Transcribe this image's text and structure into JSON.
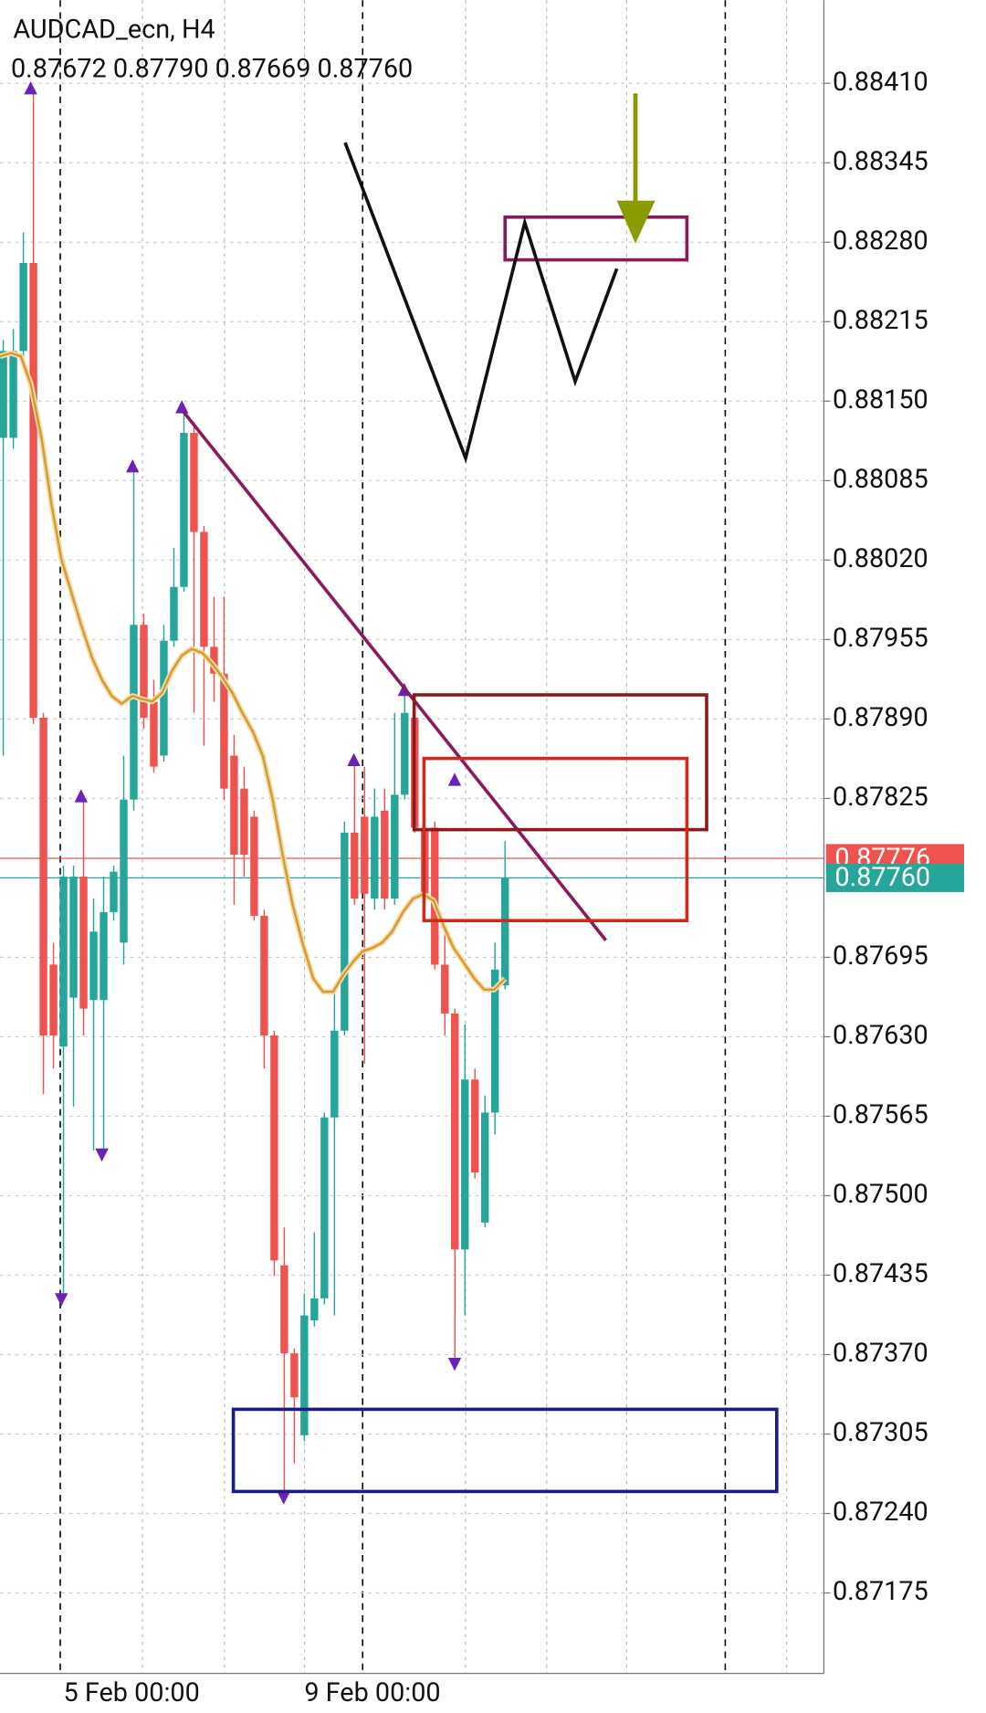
{
  "chart_data": {
    "type": "candlestick",
    "title": "AUDCAD_ecn, H4",
    "ohlc_label": "0.87672 0.87790 0.87669 0.87760",
    "categories": [
      null,
      null,
      null,
      null,
      null,
      null,
      "5 Feb 00:00",
      null,
      null,
      null,
      null,
      null,
      null,
      null,
      null,
      null,
      null,
      null,
      null,
      null,
      null,
      null,
      null,
      null,
      null,
      null,
      null,
      null,
      null,
      null,
      "9 Feb 00:00",
      null,
      null,
      null,
      null,
      null,
      null,
      null,
      null,
      null,
      null,
      null,
      null,
      null,
      null,
      null,
      null,
      null,
      null,
      null,
      null
    ],
    "open": [
      0.8812,
      0.8812,
      0.88191,
      0.88263,
      0.87891,
      0.87689,
      0.87622,
      0.87662,
      0.87761,
      0.8766,
      0.8766,
      0.87732,
      0.87707,
      0.87824,
      0.87967,
      0.87904,
      0.8786,
      0.87954,
      0.87998,
      0.88124,
      0.88043,
      0.87949,
      0.87927,
      0.8786,
      0.87833,
      0.8781,
      0.87729,
      0.87631,
      0.87443,
      0.87371,
      0.87304,
      0.87398,
      0.87416,
      0.87564,
      0.87635,
      0.87797,
      0.8781,
      0.87743,
      0.87815,
      0.87743,
      0.87828,
      0.87891,
      0.87801,
      0.87801,
      0.87689,
      0.87649,
      0.87456,
      0.87595,
      0.87478,
      0.87568,
      0.87672
    ],
    "high": [
      0.882,
      0.88209,
      0.88288,
      0.88406,
      0.87895,
      0.87707,
      0.8777,
      0.8777,
      0.87824,
      0.87743,
      0.87761,
      0.8777,
      0.8786,
      0.88097,
      0.87976,
      0.87922,
      0.87967,
      0.8803,
      0.88146,
      0.88133,
      0.88048,
      0.8799,
      0.8799,
      0.87877,
      0.87851,
      0.87815,
      0.87734,
      0.87635,
      0.87474,
      0.87375,
      0.8742,
      0.8747,
      0.87568,
      0.87667,
      0.87806,
      0.87855,
      0.87851,
      0.87833,
      0.87833,
      0.87895,
      0.87913,
      0.87904,
      0.87806,
      0.87806,
      0.87721,
      0.87653,
      0.8764,
      0.87604,
      0.87582,
      0.87707,
      0.8779
    ],
    "low": [
      0.8786,
      0.88111,
      0.88182,
      0.87886,
      0.87583,
      0.87604,
      0.87416,
      0.87573,
      0.87631,
      0.87537,
      0.87537,
      0.87725,
      0.87689,
      0.87815,
      0.87882,
      0.87846,
      0.87855,
      0.87949,
      0.87994,
      0.87895,
      0.87868,
      0.87904,
      0.87824,
      0.87738,
      0.87761,
      0.87725,
      0.87604,
      0.87434,
      0.87254,
      0.87281,
      0.87299,
      0.87393,
      0.87411,
      0.87402,
      0.87631,
      0.87738,
      0.87608,
      0.87734,
      0.87734,
      0.87738,
      0.87824,
      0.87797,
      0.87738,
      0.87685,
      0.87631,
      0.87366,
      0.87402,
      0.87514,
      0.87474,
      0.8755,
      0.87669
    ],
    "close": [
      0.88191,
      0.88191,
      0.88263,
      0.87891,
      0.87631,
      0.87631,
      0.87761,
      0.87761,
      0.87653,
      0.87716,
      0.87732,
      0.87765,
      0.87824,
      0.87967,
      0.87891,
      0.87851,
      0.87954,
      0.87998,
      0.88124,
      0.88043,
      0.87949,
      0.87927,
      0.87833,
      0.87779,
      0.87779,
      0.87729,
      0.87631,
      0.87447,
      0.87371,
      0.87335,
      0.87402,
      0.87416,
      0.87564,
      0.87635,
      0.87797,
      0.87743,
      0.87747,
      0.8781,
      0.87743,
      0.87828,
      0.87895,
      0.87801,
      0.87747,
      0.87689,
      0.87649,
      0.87456,
      0.87595,
      0.87519,
      0.87568,
      0.87685,
      0.8776
    ],
    "up_color": "#26a69a",
    "down_color": "#ef5350",
    "ylim": [
      0.87111,
      0.88478
    ],
    "yticks": [
      {
        "value": 0.8841,
        "label": "0.88410"
      },
      0.88345,
      {
        "value": 0.8828,
        "label": "0.88280"
      },
      0.88215,
      {
        "value": 0.8815,
        "label": "0.88150"
      },
      0.88085,
      {
        "value": 0.8802,
        "label": "0.88020"
      },
      0.87955,
      {
        "value": 0.8789,
        "label": "0.87890"
      },
      0.87825,
      0.87695,
      {
        "value": 0.8763,
        "label": "0.87630"
      },
      0.87565,
      {
        "value": 0.875,
        "label": "0.87500"
      },
      0.87435,
      {
        "value": 0.8737,
        "label": "0.87370"
      },
      0.87305,
      {
        "value": 0.8724,
        "label": "0.87240"
      },
      0.87175
    ],
    "grid": true,
    "price_lines": [
      {
        "price": 0.87776,
        "color": "#ef5350"
      },
      {
        "price": {
          "value": 0.8776,
          "label": "0.87760"
        },
        "color": "#26a69a"
      }
    ]
  }
}
